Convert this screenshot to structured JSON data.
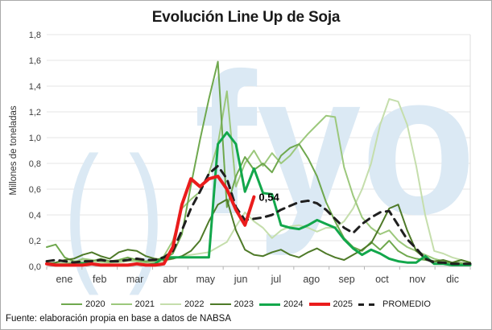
{
  "title": "Evolución Line Up de Soja",
  "y_axis_title": "Millones de toneladas",
  "source_note": "Fuente: elaboración propia en base a datos de NABSA",
  "watermark": {
    "left_glyph": "( )",
    "right_glyph": "fyo",
    "color": "#dbe9f4"
  },
  "legend": {
    "items": [
      {
        "label": "2020",
        "color": "#6fa84e",
        "thickness": 2,
        "dashed": false
      },
      {
        "label": "2021",
        "color": "#9cc87c",
        "thickness": 2,
        "dashed": false
      },
      {
        "label": "2022",
        "color": "#c5deac",
        "thickness": 2,
        "dashed": false
      },
      {
        "label": "2023",
        "color": "#4e7a28",
        "thickness": 2,
        "dashed": false
      },
      {
        "label": "2024",
        "color": "#12a74b",
        "thickness": 3,
        "dashed": false
      },
      {
        "label": "2025",
        "color": "#ea1c1c",
        "thickness": 4,
        "dashed": false
      },
      {
        "label": "PROMEDIO",
        "color": "#1f1f1f",
        "thickness": 3,
        "dashed": true
      }
    ]
  },
  "chart_data": {
    "type": "line",
    "title": "Evolución Line Up de Soja",
    "xlabel": "",
    "ylabel": "Millones de toneladas",
    "x_unit": "weekly, 4 points per month",
    "months": [
      "ene",
      "feb",
      "mar",
      "abr",
      "may",
      "jun",
      "jul",
      "ago",
      "sep",
      "oct",
      "nov",
      "dic"
    ],
    "y_tick_labels": [
      "0,0",
      "0,2",
      "0,4",
      "0,6",
      "0,8",
      "1,0",
      "1,2",
      "1,4",
      "1,6",
      "1,8"
    ],
    "y_min": 0,
    "y_max": 1.8,
    "y_step": 0.2,
    "grid": true,
    "legend_position": "bottom",
    "annotation": {
      "text": "0,54",
      "value": 0.54,
      "series": "2025"
    },
    "series": [
      {
        "name": "2022",
        "color": "#c5deac",
        "width": 2,
        "values": [
          0.02,
          0.02,
          0.03,
          0.04,
          0.05,
          0.04,
          0.03,
          0.03,
          0.03,
          0.04,
          0.04,
          0.03,
          0.03,
          0.04,
          0.06,
          0.08,
          0.09,
          0.1,
          0.11,
          0.15,
          0.19,
          0.31,
          0.42,
          0.35,
          0.3,
          0.22,
          0.28,
          0.31,
          0.32,
          0.3,
          0.27,
          0.3,
          0.3,
          0.35,
          0.45,
          0.6,
          0.8,
          1.1,
          1.3,
          1.28,
          1.1,
          0.78,
          0.4,
          0.12,
          0.1,
          0.07,
          0.05,
          0.03
        ]
      },
      {
        "name": "2021",
        "color": "#9cc87c",
        "width": 2,
        "values": [
          0.03,
          0.02,
          0.02,
          0.03,
          0.06,
          0.05,
          0.04,
          0.03,
          0.04,
          0.05,
          0.04,
          0.03,
          0.04,
          0.08,
          0.2,
          0.45,
          0.52,
          0.58,
          0.72,
          0.95,
          1.36,
          0.62,
          0.8,
          0.9,
          0.78,
          0.88,
          0.8,
          0.86,
          0.95,
          1.03,
          1.1,
          1.17,
          1.16,
          0.77,
          0.55,
          0.38,
          0.3,
          0.25,
          0.28,
          0.2,
          0.15,
          0.12,
          0.09,
          0.06,
          0.04,
          0.03,
          0.03,
          0.02
        ]
      },
      {
        "name": "2020",
        "color": "#6fa84e",
        "width": 2,
        "values": [
          0.15,
          0.17,
          0.07,
          0.04,
          0.03,
          0.04,
          0.06,
          0.04,
          0.05,
          0.07,
          0.05,
          0.04,
          0.05,
          0.06,
          0.1,
          0.25,
          0.63,
          0.98,
          1.3,
          1.59,
          0.46,
          0.7,
          0.85,
          0.75,
          0.8,
          0.73,
          0.86,
          0.92,
          0.95,
          0.84,
          0.7,
          0.5,
          0.35,
          0.22,
          0.15,
          0.12,
          0.19,
          0.13,
          0.2,
          0.12,
          0.08,
          0.06,
          0.05,
          0.04,
          0.03,
          0.03,
          0.02,
          0.02
        ]
      },
      {
        "name": "2023",
        "color": "#4e7a28",
        "width": 2,
        "values": [
          0.02,
          0.03,
          0.05,
          0.06,
          0.09,
          0.11,
          0.08,
          0.06,
          0.11,
          0.13,
          0.12,
          0.08,
          0.06,
          0.05,
          0.06,
          0.08,
          0.12,
          0.2,
          0.35,
          0.48,
          0.52,
          0.28,
          0.13,
          0.09,
          0.08,
          0.11,
          0.13,
          0.09,
          0.07,
          0.11,
          0.14,
          0.1,
          0.07,
          0.05,
          0.09,
          0.13,
          0.18,
          0.31,
          0.45,
          0.48,
          0.28,
          0.12,
          0.06,
          0.04,
          0.05,
          0.03,
          0.05,
          0.03
        ]
      },
      {
        "name": "2024",
        "color": "#12a74b",
        "width": 3,
        "values": [
          0.02,
          0.01,
          0.01,
          0.02,
          0.02,
          0.02,
          0.01,
          0.01,
          0.01,
          0.01,
          0.02,
          0.01,
          0.02,
          0.07,
          0.07,
          0.07,
          0.07,
          0.07,
          0.07,
          0.95,
          1.04,
          0.95,
          0.58,
          0.76,
          0.57,
          0.56,
          0.32,
          0.3,
          0.29,
          0.32,
          0.36,
          0.33,
          0.3,
          0.21,
          0.14,
          0.09,
          0.13,
          0.1,
          0.06,
          0.04,
          0.03,
          0.03,
          0.08,
          0.02,
          0.02,
          0.01,
          0.01,
          0.01
        ]
      },
      {
        "name": "PROMEDIO",
        "color": "#1f1f1f",
        "width": 3,
        "dash": "9 7",
        "values": [
          0.04,
          0.05,
          0.04,
          0.03,
          0.04,
          0.04,
          0.05,
          0.04,
          0.04,
          0.05,
          0.06,
          0.05,
          0.05,
          0.07,
          0.12,
          0.28,
          0.45,
          0.58,
          0.72,
          0.78,
          0.68,
          0.46,
          0.36,
          0.37,
          0.38,
          0.4,
          0.44,
          0.47,
          0.5,
          0.51,
          0.49,
          0.44,
          0.37,
          0.3,
          0.26,
          0.33,
          0.38,
          0.42,
          0.43,
          0.32,
          0.21,
          0.14,
          0.06,
          0.03,
          0.03,
          0.02,
          0.02,
          0.02
        ]
      },
      {
        "name": "2025",
        "color": "#ea1c1c",
        "width": 4,
        "values": [
          0.02,
          0.01,
          0.01,
          0.01,
          0.01,
          0.02,
          0.01,
          0.01,
          0.01,
          0.01,
          0.02,
          0.01,
          0.01,
          0.02,
          0.15,
          0.48,
          0.68,
          0.62,
          0.68,
          0.7,
          0.6,
          0.44,
          0.32,
          0.54
        ]
      }
    ]
  }
}
